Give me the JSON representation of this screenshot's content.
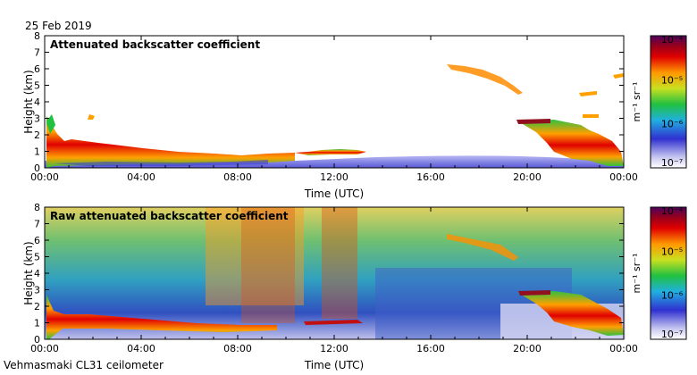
{
  "date": "25 Feb 2019",
  "instrument": "Vehmasmaki CL31 ceilometer",
  "chart_data": [
    {
      "type": "heatmap",
      "title": "Attenuated backscatter coefficient",
      "xlabel": "Time (UTC)",
      "ylabel": "Height (km)",
      "xticks": [
        "00:00",
        "04:00",
        "08:00",
        "12:00",
        "16:00",
        "20:00",
        "00:00"
      ],
      "yticks": [
        "0",
        "1",
        "2",
        "3",
        "4",
        "5",
        "6",
        "7",
        "8"
      ],
      "ylim": [
        0,
        8
      ],
      "colorbar": {
        "scale": "log",
        "unit": "m⁻¹ sr⁻¹",
        "ticks": [
          "10⁻⁴",
          "10⁻⁵",
          "10⁻⁶",
          "10⁻⁷"
        ]
      }
    },
    {
      "type": "heatmap",
      "title": "Raw attenuated backscatter coefficient",
      "xlabel": "Time (UTC)",
      "ylabel": "Height (km)",
      "xticks": [
        "00:00",
        "04:00",
        "08:00",
        "12:00",
        "16:00",
        "20:00",
        "00:00"
      ],
      "yticks": [
        "0",
        "1",
        "2",
        "3",
        "4",
        "5",
        "6",
        "7",
        "8"
      ],
      "ylim": [
        0,
        8
      ],
      "colorbar": {
        "scale": "log",
        "unit": "m⁻¹ sr⁻¹",
        "ticks": [
          "10⁻⁴",
          "10⁻⁵",
          "10⁻⁶",
          "10⁻⁷"
        ]
      }
    }
  ]
}
